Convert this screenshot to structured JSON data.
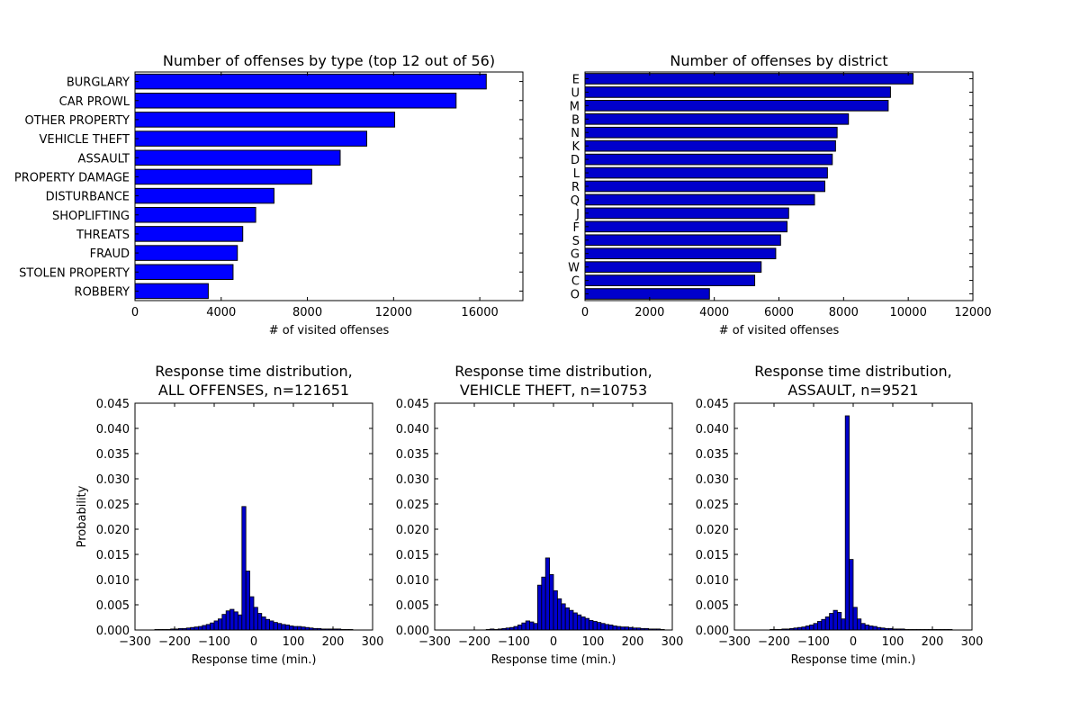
{
  "chart_data": [
    {
      "type": "bar",
      "orientation": "horizontal",
      "title": "Number of offenses by type (top 12 out of 56)",
      "xlabel": "# of visited offenses",
      "ylabel": "",
      "categories": [
        "BURGLARY",
        "CAR PROWL",
        "OTHER PROPERTY",
        "VEHICLE THEFT",
        "ASSAULT",
        "PROPERTY DAMAGE",
        "DISTURBANCE",
        "SHOPLIFTING",
        "THREATS",
        "FRAUD",
        "STOLEN PROPERTY",
        "ROBBERY"
      ],
      "values": [
        16300,
        14900,
        12050,
        10753,
        9521,
        8200,
        6450,
        5600,
        5000,
        4750,
        4550,
        3400
      ],
      "xlim": [
        0,
        18000
      ],
      "xticks": [
        "0",
        "4000",
        "8000",
        "12000",
        "16000"
      ],
      "xtick_values": [
        0,
        4000,
        8000,
        12000,
        16000
      ],
      "grid": false,
      "color": "#0000ff"
    },
    {
      "type": "bar",
      "orientation": "horizontal",
      "title": "Number of offenses by district",
      "xlabel": "# of visited offenses",
      "ylabel": "",
      "categories": [
        "E",
        "U",
        "M",
        "B",
        "N",
        "K",
        "D",
        "L",
        "R",
        "Q",
        "J",
        "F",
        "S",
        "G",
        "W",
        "C",
        "O"
      ],
      "values": [
        10150,
        9450,
        9380,
        8150,
        7800,
        7750,
        7650,
        7500,
        7420,
        7100,
        6300,
        6250,
        6050,
        5900,
        5450,
        5250,
        3850
      ],
      "xlim": [
        0,
        12000
      ],
      "xticks": [
        "0",
        "2000",
        "4000",
        "6000",
        "8000",
        "10000",
        "12000"
      ],
      "xtick_values": [
        0,
        2000,
        4000,
        6000,
        8000,
        10000,
        12000
      ],
      "grid": false,
      "color": "#0000cc"
    },
    {
      "type": "bar",
      "subtype": "histogram",
      "title": "Response time distribution,\nALL OFFENSES, n=121651",
      "xlabel": "Response time (min.)",
      "ylabel": "Probability",
      "xlim": [
        -300,
        300
      ],
      "ylim": [
        0,
        0.045
      ],
      "bin_width": 10,
      "bins_start": -250,
      "values": [
        0.0001,
        0.0001,
        0.0001,
        0.0001,
        0.0002,
        0.0002,
        0.0003,
        0.0003,
        0.0004,
        0.0005,
        0.0006,
        0.0007,
        0.0009,
        0.0011,
        0.0014,
        0.0018,
        0.0022,
        0.0031,
        0.0038,
        0.0041,
        0.0036,
        0.003,
        0.0245,
        0.0117,
        0.0066,
        0.0045,
        0.0033,
        0.0026,
        0.0021,
        0.0018,
        0.0015,
        0.0013,
        0.0011,
        0.001,
        0.0008,
        0.0007,
        0.0007,
        0.0006,
        0.0005,
        0.0004,
        0.0003,
        0.0003,
        0.0002,
        0.0002,
        0.0002,
        0.0002,
        0.0002,
        0.0001,
        0.0001,
        0.0001
      ],
      "xticks": [
        "−300",
        "−200",
        "−100",
        "0",
        "100",
        "200",
        "300"
      ],
      "xtick_values": [
        -300,
        -200,
        -100,
        0,
        100,
        200,
        300
      ],
      "yticks": [
        "0.000",
        "0.005",
        "0.010",
        "0.015",
        "0.020",
        "0.025",
        "0.030",
        "0.035",
        "0.040",
        "0.045"
      ],
      "ytick_values": [
        0,
        0.005,
        0.01,
        0.015,
        0.02,
        0.025,
        0.03,
        0.035,
        0.04,
        0.045
      ],
      "color": "#0000cc"
    },
    {
      "type": "bar",
      "subtype": "histogram",
      "title": "Response time distribution,\nVEHICLE THEFT, n=10753",
      "xlabel": "Response time (min.)",
      "ylabel": "",
      "xlim": [
        -300,
        300
      ],
      "ylim": [
        0,
        0.045
      ],
      "bin_width": 10,
      "bins_start": -250,
      "values": [
        0,
        0,
        0,
        0,
        0,
        0,
        0,
        0,
        0.0001,
        0.0002,
        0.0001,
        0.0002,
        0.0003,
        0.0004,
        0.0005,
        0.0007,
        0.001,
        0.0014,
        0.0018,
        0.0016,
        0.0013,
        0.0089,
        0.0105,
        0.0143,
        0.011,
        0.0078,
        0.0062,
        0.0052,
        0.0044,
        0.0039,
        0.0034,
        0.003,
        0.0026,
        0.0023,
        0.0019,
        0.0017,
        0.0015,
        0.0013,
        0.0011,
        0.001,
        0.0008,
        0.0007,
        0.0006,
        0.0006,
        0.0005,
        0.0004,
        0.0004,
        0.0003,
        0.0003,
        0.0002,
        0.0002,
        0.0002,
        0.0001
      ],
      "xticks": [
        "−300",
        "−200",
        "−100",
        "0",
        "100",
        "200",
        "300"
      ],
      "xtick_values": [
        -300,
        -200,
        -100,
        0,
        100,
        200,
        300
      ],
      "yticks": [
        "0.000",
        "0.005",
        "0.010",
        "0.015",
        "0.020",
        "0.025",
        "0.030",
        "0.035",
        "0.040",
        "0.045"
      ],
      "ytick_values": [
        0,
        0.005,
        0.01,
        0.015,
        0.02,
        0.025,
        0.03,
        0.035,
        0.04,
        0.045
      ],
      "color": "#0000cc"
    },
    {
      "type": "bar",
      "subtype": "histogram",
      "title": "Response time distribution,\nASSAULT, n=9521",
      "xlabel": "Response time (min.)",
      "ylabel": "",
      "xlim": [
        -300,
        300
      ],
      "ylim": [
        0,
        0.045
      ],
      "bin_width": 10,
      "bins_start": -250,
      "values": [
        0,
        0,
        0,
        0,
        0.0001,
        0.0001,
        0.0001,
        0.0002,
        0.0002,
        0.0003,
        0.0004,
        0.0005,
        0.0006,
        0.0008,
        0.001,
        0.0013,
        0.0017,
        0.0021,
        0.0026,
        0.0033,
        0.0039,
        0.0035,
        0.0022,
        0.0425,
        0.014,
        0.0045,
        0.0022,
        0.0013,
        0.001,
        0.0008,
        0.0007,
        0.0005,
        0.0004,
        0.0003,
        0.0003,
        0.0002,
        0.0002,
        0.0002,
        0.0001,
        0.0001,
        0.0001,
        0.0001,
        0.0001,
        0.0001,
        0.0001,
        0.0001,
        0.0001,
        0.0001,
        0.0001,
        0.0001
      ],
      "xticks": [
        "−300",
        "−200",
        "−100",
        "0",
        "100",
        "200",
        "300"
      ],
      "xtick_values": [
        -300,
        -200,
        -100,
        0,
        100,
        200,
        300
      ],
      "yticks": [
        "0.000",
        "0.005",
        "0.010",
        "0.015",
        "0.020",
        "0.025",
        "0.030",
        "0.035",
        "0.040",
        "0.045"
      ],
      "ytick_values": [
        0,
        0.005,
        0.01,
        0.015,
        0.02,
        0.025,
        0.03,
        0.035,
        0.04,
        0.045
      ],
      "color": "#0000cc"
    }
  ]
}
